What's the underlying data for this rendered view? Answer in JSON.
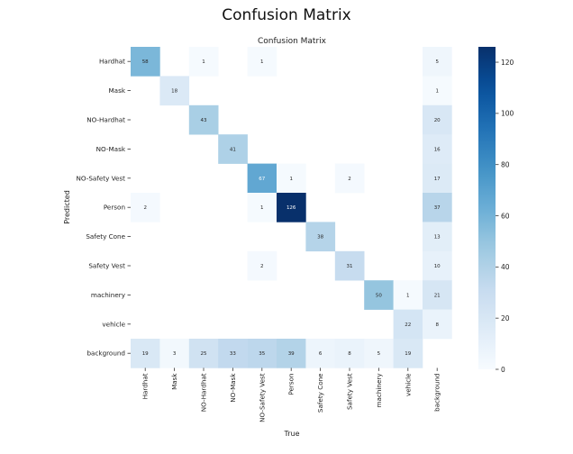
{
  "page": {
    "title": "Confusion Matrix"
  },
  "chart_data": {
    "type": "heatmap",
    "title": "Confusion Matrix",
    "xlabel": "True",
    "ylabel": "Predicted",
    "labels": [
      "Hardhat",
      "Mask",
      "NO-Hardhat",
      "NO-Mask",
      "NO-Safety Vest",
      "Person",
      "Safety Cone",
      "Safety Vest",
      "machinery",
      "vehicle",
      "background"
    ],
    "matrix": [
      [
        58,
        0,
        1,
        0,
        1,
        0,
        0,
        0,
        0,
        0,
        5
      ],
      [
        0,
        18,
        0,
        0,
        0,
        0,
        0,
        0,
        0,
        0,
        1
      ],
      [
        0,
        0,
        43,
        0,
        0,
        0,
        0,
        0,
        0,
        0,
        20
      ],
      [
        0,
        0,
        0,
        41,
        0,
        0,
        0,
        0,
        0,
        0,
        16
      ],
      [
        0,
        0,
        0,
        0,
        67,
        1,
        0,
        2,
        0,
        0,
        17
      ],
      [
        2,
        0,
        0,
        0,
        1,
        126,
        0,
        0,
        0,
        0,
        37
      ],
      [
        0,
        0,
        0,
        0,
        0,
        0,
        38,
        0,
        0,
        0,
        13
      ],
      [
        0,
        0,
        0,
        0,
        2,
        0,
        0,
        31,
        0,
        0,
        10
      ],
      [
        0,
        0,
        0,
        0,
        0,
        0,
        0,
        0,
        50,
        1,
        21
      ],
      [
        0,
        0,
        0,
        0,
        0,
        0,
        0,
        0,
        0,
        22,
        8
      ],
      [
        19,
        3,
        25,
        33,
        35,
        39,
        6,
        8,
        5,
        19,
        0
      ]
    ],
    "colorbar": {
      "min": 0,
      "max": 126,
      "ticks": [
        0,
        20,
        40,
        60,
        80,
        100,
        120
      ]
    },
    "colormap": "Blues",
    "colors": {
      "low": "#f7fbff",
      "high": "#08306b"
    }
  }
}
